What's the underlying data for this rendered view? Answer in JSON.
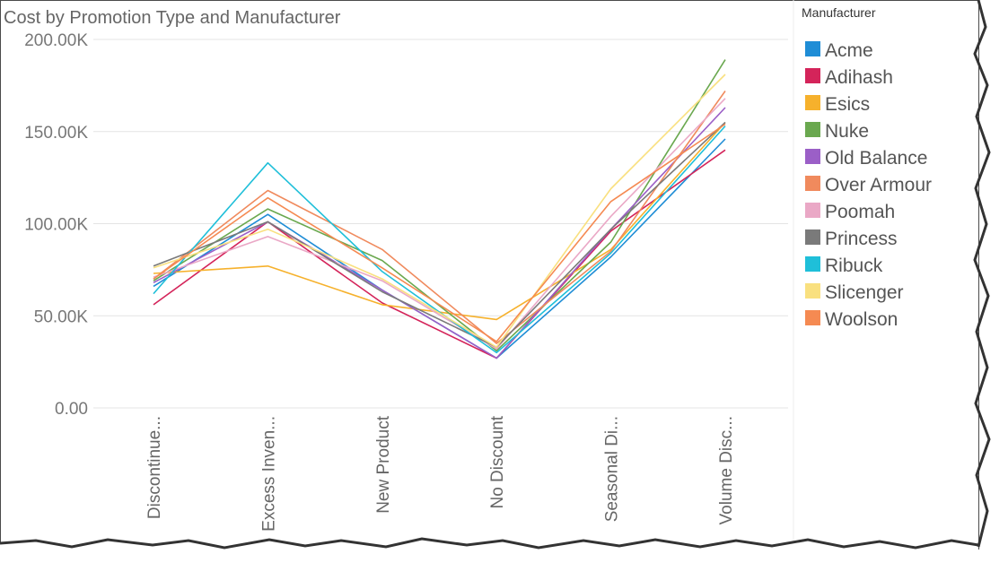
{
  "chart_data": {
    "type": "line",
    "title": "Cost by Promotion Type and Manufacturer",
    "xlabel": "",
    "ylabel": "",
    "ylim": [
      0,
      200000
    ],
    "yticks": [
      {
        "value": 0,
        "label": "0.00"
      },
      {
        "value": 50000,
        "label": "50.00K"
      },
      {
        "value": 100000,
        "label": "100.00K"
      },
      {
        "value": 150000,
        "label": "150.00K"
      },
      {
        "value": 200000,
        "label": "200.00K"
      }
    ],
    "grid": true,
    "legend_position": "right",
    "legend_title": "Manufacturer",
    "categories": [
      "Discontinue...",
      "Excess Inven...",
      "New Product",
      "No Discount",
      "Seasonal Di...",
      "Volume Disc..."
    ],
    "series": [
      {
        "name": "Acme",
        "color": "#1f8dd6",
        "values": [
          66000,
          105000,
          64000,
          27000,
          82000,
          146000
        ]
      },
      {
        "name": "Adihash",
        "color": "#d4245a",
        "values": [
          56000,
          101000,
          57000,
          27000,
          96000,
          140000
        ]
      },
      {
        "name": "Esics",
        "color": "#f6b12c",
        "values": [
          73000,
          77000,
          56000,
          48000,
          86000,
          155000
        ]
      },
      {
        "name": "Nuke",
        "color": "#6aa84f",
        "values": [
          69000,
          108000,
          80000,
          31000,
          90000,
          189000
        ]
      },
      {
        "name": "Old Balance",
        "color": "#9b5fc7",
        "values": [
          68000,
          101000,
          64000,
          27000,
          97000,
          163000
        ]
      },
      {
        "name": "Over Armour",
        "color": "#f08a5d",
        "values": [
          70000,
          118000,
          86000,
          35000,
          85000,
          172000
        ]
      },
      {
        "name": "Poomah",
        "color": "#eaa8c6",
        "values": [
          71000,
          93000,
          69000,
          32000,
          104000,
          168000
        ]
      },
      {
        "name": "Princess",
        "color": "#7a7a7a",
        "values": [
          77000,
          101000,
          63000,
          33000,
          97000,
          155000
        ]
      },
      {
        "name": "Ribuck",
        "color": "#1fbfd9",
        "values": [
          62000,
          133000,
          74000,
          30000,
          84000,
          153000
        ]
      },
      {
        "name": "Slicenger",
        "color": "#f9e07f",
        "values": [
          76000,
          97000,
          70000,
          33000,
          119000,
          181000
        ]
      },
      {
        "name": "Woolson",
        "color": "#f58a52",
        "values": [
          70000,
          114000,
          76000,
          36000,
          112000,
          154000
        ]
      }
    ]
  }
}
